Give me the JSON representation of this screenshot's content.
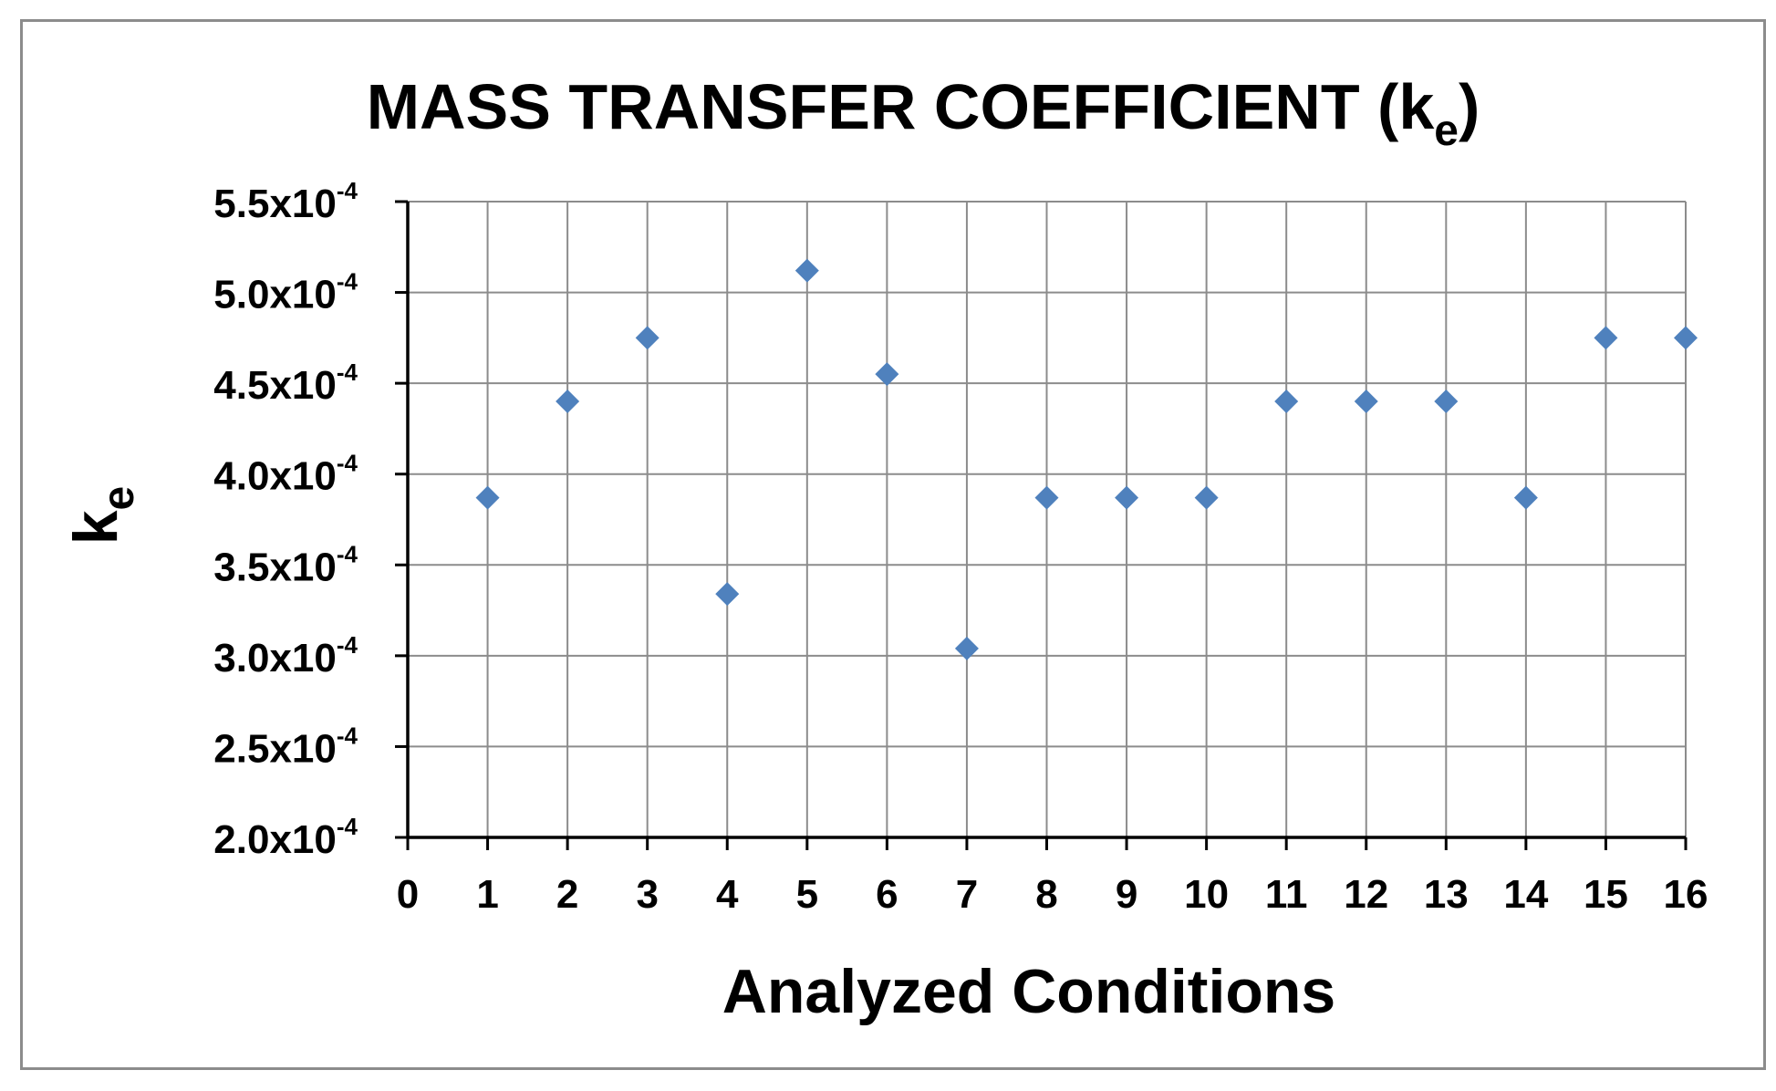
{
  "chart_data": {
    "type": "scatter",
    "title": "MASS TRANSFER COEFFICIENT (k",
    "title_subscript": "e",
    "title_suffix": ")",
    "xlabel": "Analyzed Conditions",
    "ylabel": "k",
    "ylabel_subscript": "e",
    "xlim": [
      0,
      16
    ],
    "ylim": [
      0.0002,
      0.00055
    ],
    "x_ticks": [
      "0",
      "1",
      "2",
      "3",
      "4",
      "5",
      "6",
      "7",
      "8",
      "9",
      "10",
      "11",
      "12",
      "13",
      "14",
      "15",
      "16"
    ],
    "y_ticks": [
      {
        "value": 0.00055,
        "mantissa": "5.5x10",
        "exponent": "-4"
      },
      {
        "value": 0.0005,
        "mantissa": "5.0x10",
        "exponent": "-4"
      },
      {
        "value": 0.00045,
        "mantissa": "4.5x10",
        "exponent": "-4"
      },
      {
        "value": 0.0004,
        "mantissa": "4.0x10",
        "exponent": "-4"
      },
      {
        "value": 0.00035,
        "mantissa": "3.5x10",
        "exponent": "-4"
      },
      {
        "value": 0.0003,
        "mantissa": "3.0x10",
        "exponent": "-4"
      },
      {
        "value": 0.00025,
        "mantissa": "2.5x10",
        "exponent": "-4"
      },
      {
        "value": 0.0002,
        "mantissa": "2.0x10",
        "exponent": "-4"
      }
    ],
    "grid": true,
    "marker": "diamond",
    "marker_color": "#4f81bd",
    "series": [
      {
        "x": [
          1,
          2,
          3,
          4,
          5,
          6,
          7,
          8,
          9,
          10,
          11,
          12,
          13,
          14,
          15,
          16
        ],
        "y": [
          0.000387,
          0.00044,
          0.000475,
          0.000334,
          0.000512,
          0.000455,
          0.000304,
          0.000387,
          0.000387,
          0.000387,
          0.00044,
          0.00044,
          0.00044,
          0.000387,
          0.000475,
          0.000475
        ]
      }
    ]
  }
}
